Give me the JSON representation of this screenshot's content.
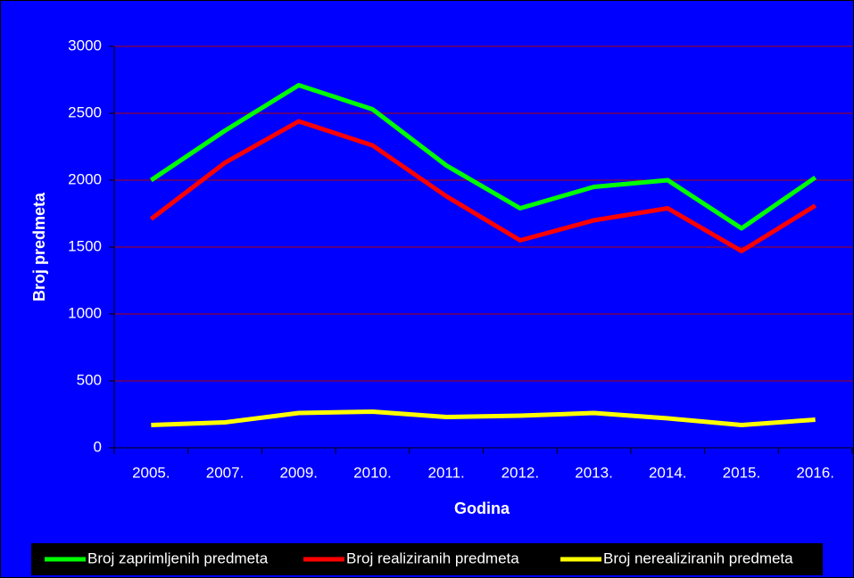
{
  "chart_data": {
    "type": "line",
    "xlabel": "Godina",
    "ylabel": "Broj predmeta",
    "categories": [
      "2005.",
      "2007.",
      "2009.",
      "2010.",
      "2011.",
      "2012.",
      "2013.",
      "2014.",
      "2015.",
      "2016."
    ],
    "series": [
      {
        "name": "Broj zaprimljenih predmeta",
        "color": "#00ff00",
        "values": [
          2000,
          2370,
          2710,
          2530,
          2110,
          1790,
          1950,
          2000,
          1640,
          2020
        ]
      },
      {
        "name": "Broj realiziranih predmeta",
        "color": "#ff0000",
        "values": [
          1710,
          2130,
          2440,
          2260,
          1880,
          1550,
          1700,
          1790,
          1470,
          1810
        ]
      },
      {
        "name": "Broj nerealiziranih predmeta",
        "color": "#ffff00",
        "values": [
          170,
          190,
          260,
          270,
          230,
          240,
          260,
          220,
          170,
          210
        ]
      }
    ],
    "ylim": [
      0,
      3000
    ],
    "yticks": [
      0,
      500,
      1000,
      1500,
      2000,
      2500,
      3000
    ],
    "grid": true,
    "legend": "bottom"
  }
}
